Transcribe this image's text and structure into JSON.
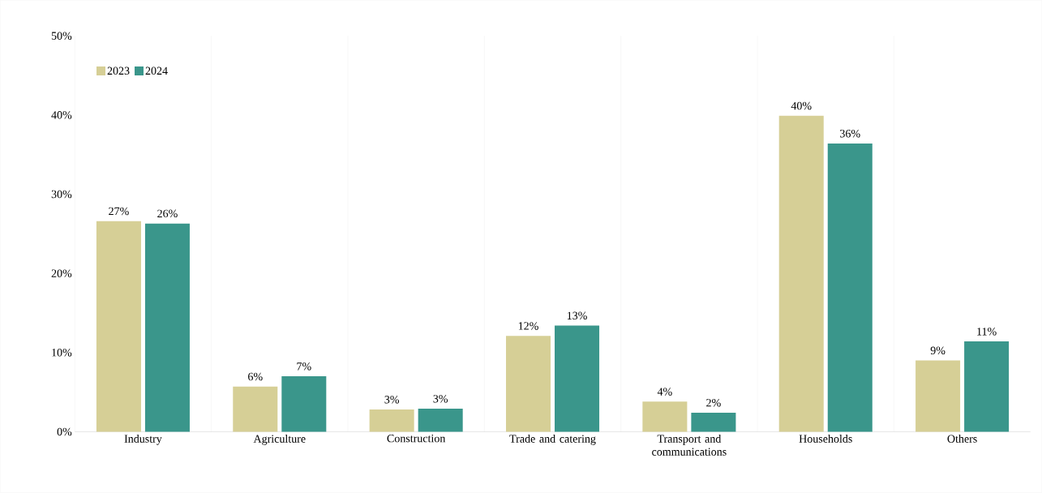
{
  "chart_data": {
    "type": "bar",
    "categories": [
      "Industry",
      "Agriculture",
      "Construction",
      "Trade and catering",
      "Transport and communications",
      "Households",
      "Others"
    ],
    "series": [
      {
        "name": "2023",
        "color": "#d6cf96",
        "values": [
          26.6,
          5.7,
          2.8,
          12.1,
          3.8,
          39.9,
          9.0
        ],
        "value_labels": [
          "27%",
          "6%",
          "3%",
          "12%",
          "4%",
          "40%",
          "9%"
        ]
      },
      {
        "name": "2024",
        "color": "#3a968b",
        "values": [
          26.3,
          7.0,
          2.9,
          13.4,
          2.4,
          36.4,
          11.4
        ],
        "value_labels": [
          "26%",
          "7%",
          "3%",
          "13%",
          "2%",
          "36%",
          "11%"
        ]
      }
    ],
    "ylim": [
      0,
      50
    ],
    "yticks": [
      {
        "value": 0,
        "label": "0%"
      },
      {
        "value": 10,
        "label": "10%"
      },
      {
        "value": 20,
        "label": "20%"
      },
      {
        "value": 30,
        "label": "30%"
      },
      {
        "value": 40,
        "label": "40%"
      },
      {
        "value": 50,
        "label": "50%"
      }
    ],
    "grid": "x",
    "legend": "top left"
  }
}
